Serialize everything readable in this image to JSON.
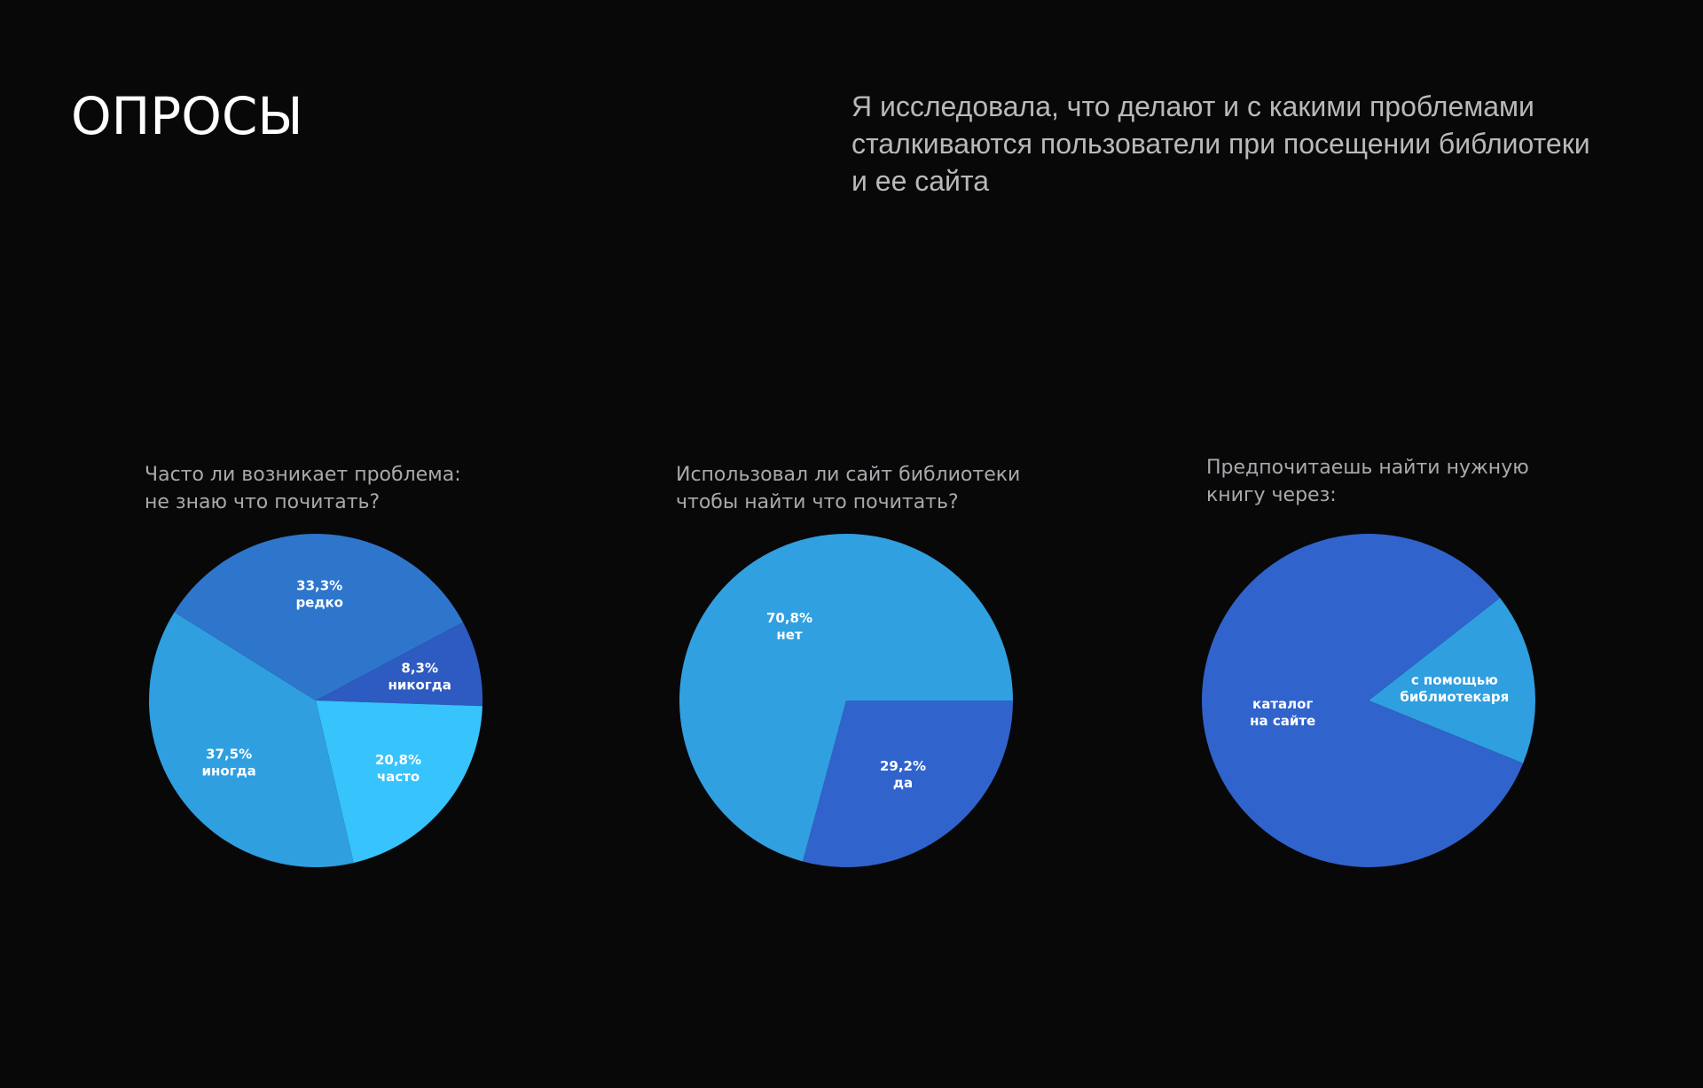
{
  "title": "ОПРОСЫ",
  "intro": [
    "Я исследовала, что делают и с какими проблемами",
    "сталкиваются пользователи при посещении библиотеки",
    "и ее сайта"
  ],
  "colors": {
    "background": "#080809",
    "mid_blue": "#2e76cc",
    "dark_blue": "#2d5bc1",
    "sky_blue": "#2f9fe0",
    "light_cyan": "#37c3fc",
    "royal_blue": "#3163cc"
  },
  "chart_data": [
    {
      "type": "pie",
      "question": [
        "Часто ли возникает проблема:",
        "не знаю что почитать?"
      ],
      "slices": [
        {
          "pct_label": "8,3%",
          "label": "никогда",
          "value": 8.3,
          "color": "#2d5bc1"
        },
        {
          "pct_label": "20,8%",
          "label": "часто",
          "value": 20.8,
          "color": "#37c3fc"
        },
        {
          "pct_label": "37,5%",
          "label": "иногда",
          "value": 37.5,
          "color": "#2f9fe0"
        },
        {
          "pct_label": "33,3%",
          "label": "редко",
          "value": 33.3,
          "color": "#2e76cc"
        }
      ]
    },
    {
      "type": "pie",
      "question": [
        "Использовал ли сайт библиотеки",
        "чтобы найти что почитать?"
      ],
      "slices": [
        {
          "pct_label": "29,2%",
          "label": "да",
          "value": 29.2,
          "color": "#3163cc"
        },
        {
          "pct_label": "70,8%",
          "label": "нет",
          "value": 70.8,
          "color": "#31a0e0"
        }
      ]
    },
    {
      "type": "pie",
      "question": [
        "Предпочитаешь найти нужную",
        "книгу через:"
      ],
      "slices": [
        {
          "pct_label": "",
          "label": "с помощью библиотекаря",
          "label_lines": [
            "с помощью",
            "библиотекаря"
          ],
          "value": 16.7,
          "color": "#2f9fe0"
        },
        {
          "pct_label": "",
          "label": "каталог на сайте",
          "label_lines": [
            "каталог",
            "на сайте"
          ],
          "value": 83.3,
          "color": "#3163cc"
        }
      ]
    }
  ]
}
